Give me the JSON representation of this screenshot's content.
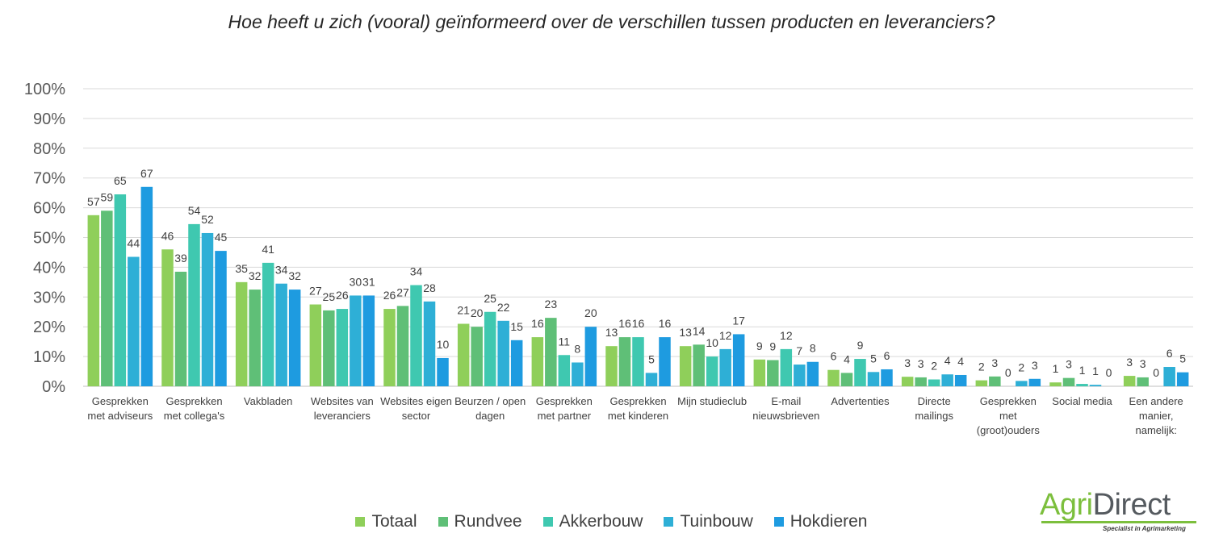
{
  "title": "Hoe heeft u zich (vooral) geïnformeerd over de verschillen tussen producten en leveranciers?",
  "brand": {
    "name_part1": "Agri",
    "name_part2": "Direct",
    "tagline": "Specialist in Agrimarketing"
  },
  "colors": {
    "series": [
      "#8fcf5a",
      "#5fbf77",
      "#3fc8b0",
      "#2eafd6",
      "#1e9be0"
    ],
    "grid": "#d9d9d9",
    "axis": "#bfbfbf"
  },
  "chart_data": {
    "type": "bar",
    "ylim": [
      0,
      100
    ],
    "yticks": [
      "0%",
      "10%",
      "20%",
      "30%",
      "40%",
      "50%",
      "60%",
      "70%",
      "80%",
      "90%",
      "100%"
    ],
    "grid": true,
    "legend_position": "bottom",
    "categories": [
      [
        "Gesprekken",
        "met adviseurs"
      ],
      [
        "Gesprekken",
        "met collega's"
      ],
      [
        "Vakbladen"
      ],
      [
        "Websites van",
        "leveranciers"
      ],
      [
        "Websites eigen",
        "sector"
      ],
      [
        "Beurzen / open",
        "dagen"
      ],
      [
        "Gesprekken",
        "met partner"
      ],
      [
        "Gesprekken",
        "met kinderen"
      ],
      [
        "Mijn studieclub"
      ],
      [
        "E-mail",
        "nieuwsbrieven"
      ],
      [
        "Advertenties"
      ],
      [
        "Directe",
        "mailings"
      ],
      [
        "Gesprekken",
        "met",
        "(groot)ouders"
      ],
      [
        "Social media"
      ],
      [
        "Een andere",
        "manier,",
        "namelijk:"
      ]
    ],
    "series": [
      {
        "name": "Totaal",
        "values": [
          57,
          46,
          35,
          27,
          26,
          21,
          16,
          13,
          13,
          9,
          6,
          3,
          2,
          1,
          3
        ],
        "bar_values": [
          57.5,
          46,
          35,
          27.5,
          26,
          21,
          16.5,
          13.5,
          13.5,
          9,
          5.5,
          3.2,
          2,
          1.3,
          3.5
        ]
      },
      {
        "name": "Rundvee",
        "values": [
          59,
          39,
          32,
          25,
          27,
          20,
          23,
          16,
          14,
          9,
          4,
          3,
          3,
          3,
          3
        ],
        "bar_values": [
          59,
          38.5,
          32.5,
          25.5,
          27,
          20,
          23,
          16.5,
          14,
          8.8,
          4.5,
          3,
          3.3,
          2.8,
          3
        ]
      },
      {
        "name": "Akkerbouw",
        "values": [
          65,
          54,
          41,
          26,
          34,
          25,
          11,
          16,
          10,
          12,
          9,
          2,
          0,
          1,
          0
        ],
        "bar_values": [
          64.5,
          54.5,
          41.5,
          26,
          34,
          25,
          10.5,
          16.5,
          10,
          12.5,
          9.2,
          2.3,
          0,
          0.8,
          0
        ]
      },
      {
        "name": "Tuinbouw",
        "values": [
          44,
          52,
          34,
          30,
          28,
          22,
          8,
          5,
          12,
          7,
          5,
          4,
          2,
          1,
          6
        ],
        "bar_values": [
          43.5,
          51.5,
          34.5,
          30.5,
          28.5,
          22,
          8,
          4.5,
          12.5,
          7.3,
          4.8,
          4,
          1.8,
          0.5,
          6.5
        ]
      },
      {
        "name": "Hokdieren",
        "values": [
          67,
          45,
          32,
          31,
          10,
          15,
          20,
          16,
          17,
          8,
          6,
          4,
          3,
          0,
          5
        ],
        "bar_values": [
          67,
          45.5,
          32.5,
          30.5,
          9.5,
          15.5,
          20,
          16.5,
          17.5,
          8.2,
          5.7,
          3.8,
          2.5,
          0,
          4.7
        ]
      }
    ]
  }
}
